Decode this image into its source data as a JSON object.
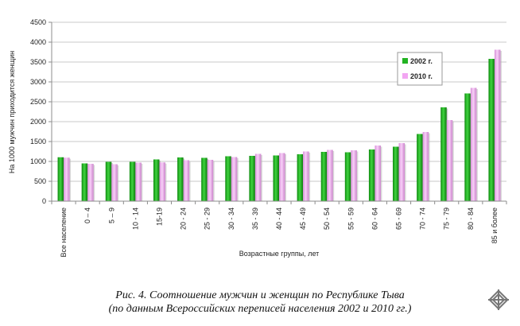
{
  "chart_data": {
    "type": "bar",
    "title": "",
    "ylabel": "На 1000 мужчин приходится женщин",
    "xlabel": "Возрастные группы, лет",
    "ylim": [
      0,
      4500
    ],
    "yticks": [
      0,
      500,
      1000,
      1500,
      2000,
      2500,
      3000,
      3500,
      4000,
      4500
    ],
    "grid": "horizontal",
    "legend_position": "right",
    "categories": [
      "Все население",
      "0 – 4",
      "5 – 9",
      "10 - 14",
      "15-19",
      "20 - 24",
      "25 - 29",
      "30 - 34",
      "35 - 39",
      "40 - 44",
      "45 - 49",
      "50 - 54",
      "55 - 59",
      "60 - 64",
      "65 - 69",
      "70 - 74",
      "75 - 79",
      "80 - 84",
      "85 и более"
    ],
    "series": [
      {
        "name": "2002 г.",
        "color": "#22b322",
        "values": [
          1105,
          950,
          990,
          990,
          1050,
          1100,
          1090,
          1130,
          1140,
          1150,
          1180,
          1240,
          1230,
          1300,
          1370,
          1690,
          2360,
          2710,
          3580
        ]
      },
      {
        "name": "2010 г.",
        "color": "#f2a6f2",
        "values": [
          1095,
          940,
          930,
          970,
          975,
          1030,
          1040,
          1110,
          1190,
          1210,
          1250,
          1290,
          1280,
          1400,
          1460,
          1740,
          2040,
          2850,
          3810
        ]
      }
    ]
  },
  "caption": {
    "line1": "Рис. 4. Соотношение мужчин и женщин по Республике Тыва",
    "line2": "(по данным Всероссийских переписей населения 2002 и 2010 гг.)"
  }
}
